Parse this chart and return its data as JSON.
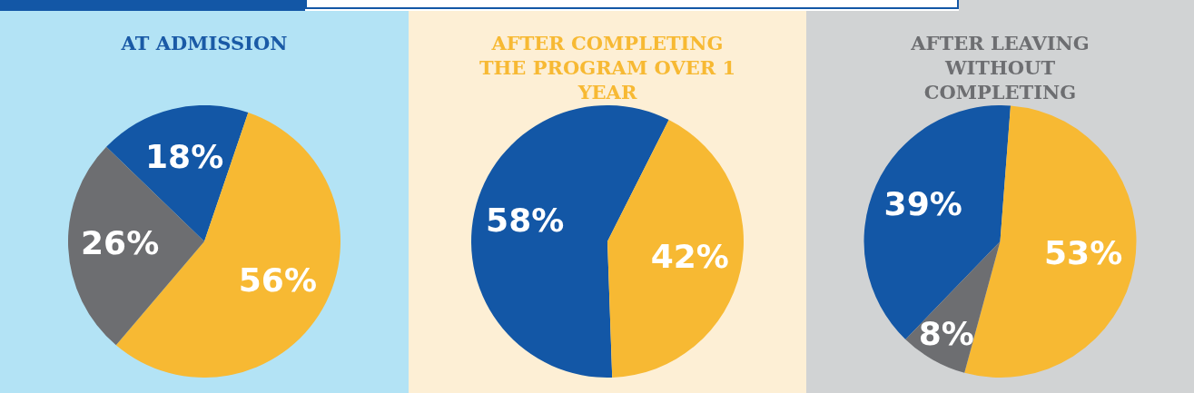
{
  "chart_data": [
    {
      "type": "pie",
      "title": "AT ADMISSION",
      "categories": [
        null,
        null,
        null
      ],
      "values": [
        18,
        56,
        26
      ],
      "value_labels": [
        "18%",
        "56%",
        "26%"
      ],
      "colors": [
        "#1357a6",
        "#f7b933",
        "#6d6e71"
      ],
      "legend": false
    },
    {
      "type": "pie",
      "title": "AFTER COMPLETING THE PROGRAM OVER 1 YEAR",
      "categories": [
        null,
        null
      ],
      "values": [
        58,
        42
      ],
      "value_labels": [
        "58%",
        "42%"
      ],
      "colors": [
        "#1357a6",
        "#f7b933"
      ],
      "legend": false
    },
    {
      "type": "pie",
      "title": "AFTER LEAVING WITHOUT COMPLETING",
      "categories": [
        null,
        null,
        null
      ],
      "values": [
        39,
        53,
        8
      ],
      "value_labels": [
        "39%",
        "53%",
        "8%"
      ],
      "colors": [
        "#1357a6",
        "#f7b933",
        "#6d6e71"
      ],
      "legend": false
    }
  ]
}
